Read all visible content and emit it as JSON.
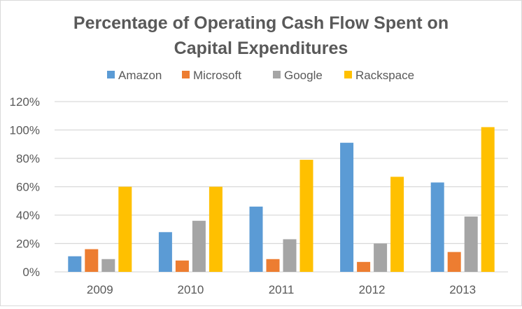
{
  "chart_data": {
    "type": "bar",
    "title_lines": [
      "Percentage of Operating Cash Flow Spent on",
      "Capital Expenditures"
    ],
    "title": "Percentage of Operating Cash Flow Spent on Capital Expenditures",
    "xlabel": "",
    "ylabel": "",
    "categories": [
      "2009",
      "2010",
      "2011",
      "2012",
      "2013"
    ],
    "series": [
      {
        "name": "Amazon",
        "color": "#5b9bd5",
        "values": [
          11,
          28,
          46,
          91,
          63
        ]
      },
      {
        "name": "Microsoft",
        "color": "#ed7d31",
        "values": [
          16,
          8,
          9,
          7,
          14
        ]
      },
      {
        "name": "Google",
        "color": "#a5a5a5",
        "values": [
          9,
          36,
          23,
          20,
          39
        ]
      },
      {
        "name": "Rackspace",
        "color": "#ffc000",
        "values": [
          60,
          60,
          79,
          67,
          102
        ]
      }
    ],
    "ylim": [
      0,
      120
    ],
    "yticks": [
      0,
      20,
      40,
      60,
      80,
      100,
      120
    ],
    "ytick_labels": [
      "0%",
      "20%",
      "40%",
      "60%",
      "80%",
      "100%",
      "120%"
    ],
    "value_unit": "%",
    "grid": true,
    "legend_position": "top"
  }
}
